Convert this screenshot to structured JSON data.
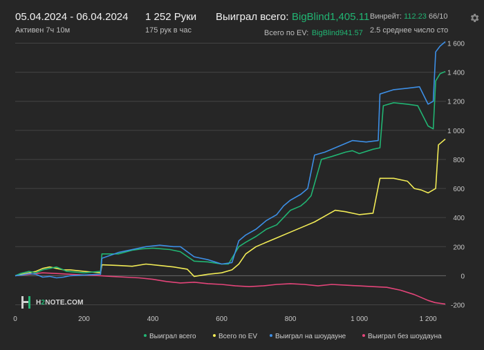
{
  "header": {
    "date_range": "05.04.2024 - 06.04.2024",
    "active_time": "Активен 7ч 10м",
    "hands_count": "1 252 Руки",
    "hands_per_hour": "175 рук в час",
    "won_total_label": "Выиграл всего:",
    "won_total_value": "BigBlind1,405.11",
    "ev_total_label": "Всего по EV:",
    "ev_total_value": "BigBlind941.57",
    "winrate_label": "Винрейт:",
    "winrate_value": "112.23",
    "winrate_suffix": "66/10",
    "avg_stacks": "2.5 среднее число сто"
  },
  "logo": {
    "prefix": "H",
    "mid": "2",
    "suffix": "NOTE.COM"
  },
  "colors": {
    "won_total": "#21b573",
    "ev_total": "#f2ec56",
    "showdown": "#3d8fe6",
    "non_showdown": "#e5457a",
    "background": "#262626",
    "grid": "#4a4a4a"
  },
  "chart_data": {
    "type": "line",
    "x_range": [
      0,
      1252
    ],
    "y_range": [
      -250,
      1650
    ],
    "x_ticks": [
      0,
      200,
      400,
      600,
      800,
      1000,
      1200
    ],
    "x_tick_labels": [
      "0",
      "200",
      "400",
      "600",
      "800",
      "1 000",
      "1 200"
    ],
    "y_ticks": [
      -200,
      0,
      200,
      400,
      600,
      800,
      1000,
      1200,
      1400,
      1600
    ],
    "y_tick_labels": [
      "-200",
      "0",
      "200",
      "400",
      "600",
      "800",
      "1 000",
      "1 200",
      "1 400",
      "1 600"
    ],
    "grid": true,
    "legend_position": "bottom",
    "series": [
      {
        "name": "Выиграл всего",
        "color": "#21b573",
        "points": [
          [
            0,
            0
          ],
          [
            15,
            15
          ],
          [
            40,
            30
          ],
          [
            60,
            20
          ],
          [
            80,
            40
          ],
          [
            100,
            50
          ],
          [
            120,
            60
          ],
          [
            140,
            40
          ],
          [
            150,
            30
          ],
          [
            200,
            20
          ],
          [
            248,
            30
          ],
          [
            252,
            150
          ],
          [
            300,
            150
          ],
          [
            340,
            175
          ],
          [
            370,
            185
          ],
          [
            400,
            190
          ],
          [
            450,
            180
          ],
          [
            480,
            165
          ],
          [
            520,
            100
          ],
          [
            560,
            95
          ],
          [
            600,
            80
          ],
          [
            620,
            80
          ],
          [
            650,
            200
          ],
          [
            670,
            230
          ],
          [
            700,
            270
          ],
          [
            730,
            320
          ],
          [
            760,
            350
          ],
          [
            780,
            400
          ],
          [
            800,
            450
          ],
          [
            830,
            480
          ],
          [
            845,
            510
          ],
          [
            860,
            550
          ],
          [
            890,
            800
          ],
          [
            920,
            820
          ],
          [
            960,
            850
          ],
          [
            980,
            860
          ],
          [
            1000,
            840
          ],
          [
            1040,
            870
          ],
          [
            1060,
            880
          ],
          [
            1070,
            1170
          ],
          [
            1100,
            1190
          ],
          [
            1140,
            1180
          ],
          [
            1170,
            1170
          ],
          [
            1200,
            1030
          ],
          [
            1215,
            1010
          ],
          [
            1222,
            1340
          ],
          [
            1235,
            1390
          ],
          [
            1250,
            1405
          ]
        ]
      },
      {
        "name": "Всего по EV",
        "color": "#f2ec56",
        "points": [
          [
            0,
            0
          ],
          [
            20,
            10
          ],
          [
            40,
            20
          ],
          [
            60,
            30
          ],
          [
            80,
            50
          ],
          [
            100,
            60
          ],
          [
            120,
            50
          ],
          [
            140,
            40
          ],
          [
            160,
            40
          ],
          [
            200,
            30
          ],
          [
            248,
            20
          ],
          [
            252,
            75
          ],
          [
            300,
            70
          ],
          [
            340,
            65
          ],
          [
            380,
            80
          ],
          [
            420,
            70
          ],
          [
            460,
            60
          ],
          [
            500,
            45
          ],
          [
            520,
            -5
          ],
          [
            560,
            10
          ],
          [
            600,
            20
          ],
          [
            630,
            40
          ],
          [
            650,
            80
          ],
          [
            670,
            150
          ],
          [
            700,
            200
          ],
          [
            730,
            230
          ],
          [
            760,
            260
          ],
          [
            800,
            300
          ],
          [
            840,
            340
          ],
          [
            870,
            370
          ],
          [
            900,
            410
          ],
          [
            930,
            450
          ],
          [
            960,
            440
          ],
          [
            1000,
            420
          ],
          [
            1040,
            430
          ],
          [
            1060,
            670
          ],
          [
            1100,
            670
          ],
          [
            1140,
            650
          ],
          [
            1160,
            600
          ],
          [
            1180,
            590
          ],
          [
            1200,
            570
          ],
          [
            1222,
            600
          ],
          [
            1230,
            900
          ],
          [
            1250,
            940
          ]
        ]
      },
      {
        "name": "Выиграл на шоудауне",
        "color": "#3d8fe6",
        "points": [
          [
            0,
            0
          ],
          [
            20,
            5
          ],
          [
            40,
            15
          ],
          [
            60,
            10
          ],
          [
            80,
            -10
          ],
          [
            100,
            -5
          ],
          [
            120,
            -15
          ],
          [
            140,
            -10
          ],
          [
            160,
            0
          ],
          [
            200,
            5
          ],
          [
            248,
            10
          ],
          [
            252,
            120
          ],
          [
            300,
            160
          ],
          [
            340,
            180
          ],
          [
            380,
            200
          ],
          [
            420,
            210
          ],
          [
            460,
            200
          ],
          [
            480,
            200
          ],
          [
            520,
            130
          ],
          [
            560,
            110
          ],
          [
            600,
            80
          ],
          [
            630,
            90
          ],
          [
            650,
            240
          ],
          [
            670,
            280
          ],
          [
            700,
            320
          ],
          [
            730,
            380
          ],
          [
            760,
            420
          ],
          [
            780,
            480
          ],
          [
            800,
            520
          ],
          [
            830,
            560
          ],
          [
            850,
            600
          ],
          [
            870,
            830
          ],
          [
            900,
            850
          ],
          [
            940,
            890
          ],
          [
            980,
            930
          ],
          [
            1020,
            920
          ],
          [
            1055,
            930
          ],
          [
            1060,
            1250
          ],
          [
            1100,
            1280
          ],
          [
            1140,
            1290
          ],
          [
            1175,
            1300
          ],
          [
            1200,
            1180
          ],
          [
            1215,
            1200
          ],
          [
            1222,
            1540
          ],
          [
            1235,
            1580
          ],
          [
            1250,
            1610
          ]
        ]
      },
      {
        "name": "Выиграл без шоудауна",
        "color": "#e5457a",
        "points": [
          [
            0,
            0
          ],
          [
            40,
            10
          ],
          [
            80,
            20
          ],
          [
            120,
            15
          ],
          [
            160,
            10
          ],
          [
            200,
            5
          ],
          [
            248,
            0
          ],
          [
            280,
            -5
          ],
          [
            320,
            -10
          ],
          [
            360,
            -15
          ],
          [
            400,
            -25
          ],
          [
            440,
            -40
          ],
          [
            480,
            -50
          ],
          [
            520,
            -45
          ],
          [
            560,
            -55
          ],
          [
            600,
            -60
          ],
          [
            640,
            -70
          ],
          [
            680,
            -75
          ],
          [
            720,
            -70
          ],
          [
            760,
            -60
          ],
          [
            800,
            -55
          ],
          [
            840,
            -60
          ],
          [
            880,
            -70
          ],
          [
            920,
            -60
          ],
          [
            960,
            -65
          ],
          [
            1000,
            -70
          ],
          [
            1040,
            -75
          ],
          [
            1080,
            -80
          ],
          [
            1120,
            -100
          ],
          [
            1160,
            -130
          ],
          [
            1200,
            -170
          ],
          [
            1220,
            -185
          ],
          [
            1250,
            -195
          ]
        ]
      }
    ]
  }
}
